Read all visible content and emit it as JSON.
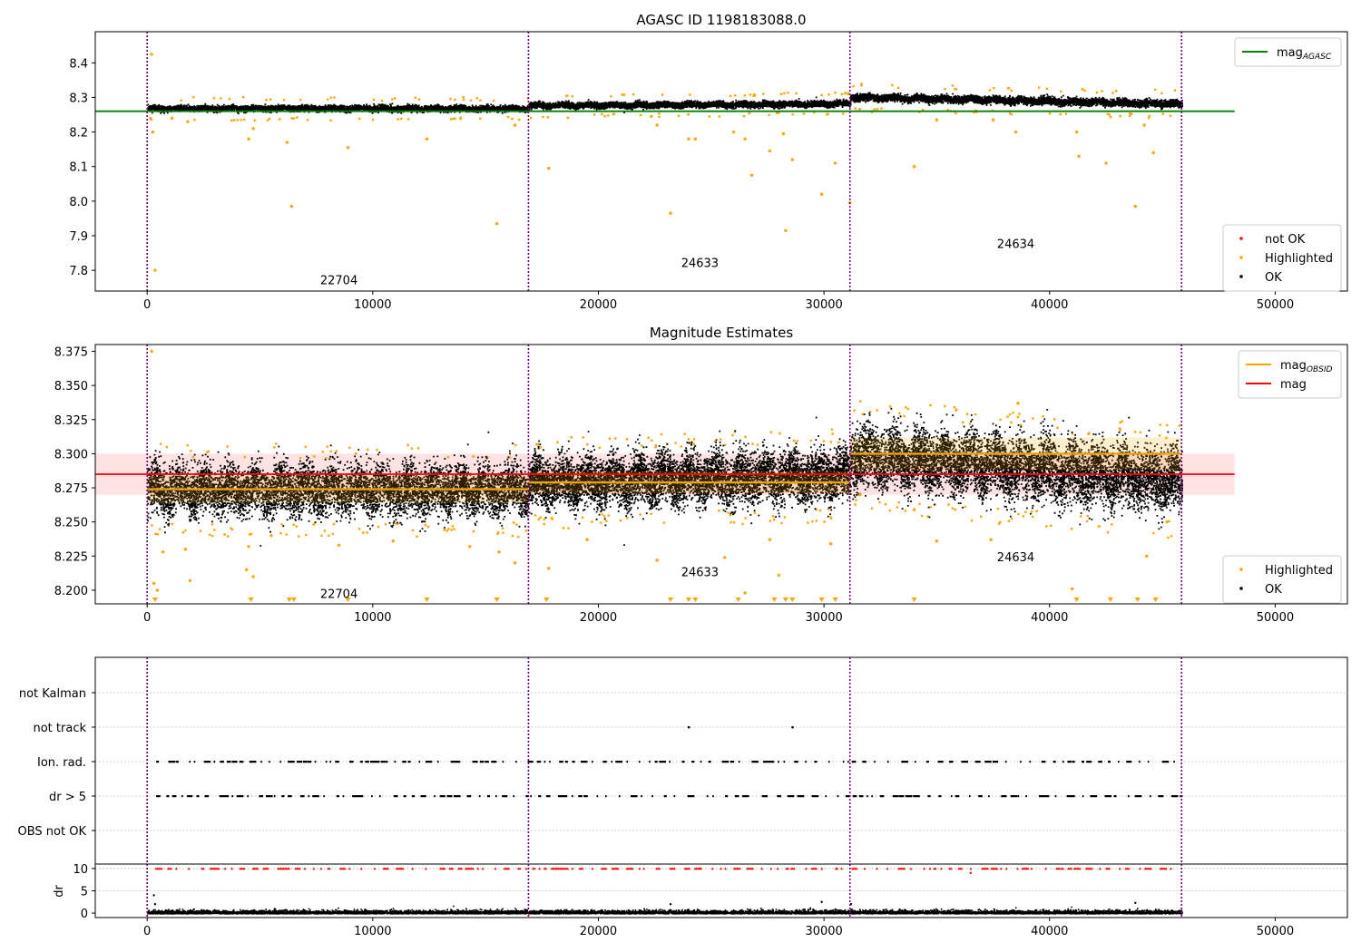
{
  "colors": {
    "ok": "#000000",
    "highlighted": "#ffa500",
    "not_ok": "#ff0000",
    "obsid_line": "#e8a317",
    "vline": "#800080",
    "agasc_line": "#008000",
    "mag_line": "#ff0000",
    "band": "#ffc0c0",
    "grid": "#b0b0b0"
  },
  "chart_data": [
    {
      "type": "scatter",
      "title": "AGASC ID 1198183088.0",
      "xlabel": "",
      "ylabel": "",
      "xlim": [
        -2300,
        53200
      ],
      "ylim": [
        7.74,
        8.49
      ],
      "xticks": [
        0,
        10000,
        20000,
        30000,
        40000,
        50000
      ],
      "xtick_labels": [
        "0",
        "10000",
        "20000",
        "30000",
        "40000",
        "50000"
      ],
      "yticks": [
        7.8,
        7.9,
        8.0,
        8.1,
        8.2,
        8.3,
        8.4
      ],
      "ytick_labels": [
        "7.8",
        "7.9",
        "8.0",
        "8.1",
        "8.2",
        "8.3",
        "8.4"
      ],
      "observation_boundaries": [
        0,
        16900,
        31150,
        45850
      ],
      "observations": [
        {
          "obsid": "22704",
          "label_x": 8500,
          "label_y": 7.77,
          "start": 0,
          "end": 16900,
          "level": 8.27,
          "noise": 0.009,
          "trend": 0.0
        },
        {
          "obsid": "24633",
          "label_x": 24500,
          "label_y": 7.82,
          "start": 16900,
          "end": 31150,
          "level": 8.278,
          "noise": 0.009,
          "trend": 0.006
        },
        {
          "obsid": "24634",
          "label_x": 38500,
          "label_y": 7.875,
          "start": 31150,
          "end": 45850,
          "level": 8.303,
          "noise": 0.011,
          "trend": -0.02
        }
      ],
      "reference_lines": [
        {
          "name": "mag_AGASC",
          "y": 8.26,
          "x_range": [
            -2300,
            48200
          ]
        }
      ],
      "highlighted_outliers": [
        {
          "x": 200,
          "y": 8.425
        },
        {
          "x": 250,
          "y": 8.2
        },
        {
          "x": 350,
          "y": 7.8
        },
        {
          "x": 1100,
          "y": 8.24
        },
        {
          "x": 1800,
          "y": 8.23
        },
        {
          "x": 4500,
          "y": 8.18
        },
        {
          "x": 4700,
          "y": 8.21
        },
        {
          "x": 6200,
          "y": 8.17
        },
        {
          "x": 6400,
          "y": 7.985
        },
        {
          "x": 8900,
          "y": 8.155
        },
        {
          "x": 12400,
          "y": 8.18
        },
        {
          "x": 15500,
          "y": 7.935
        },
        {
          "x": 16300,
          "y": 8.22
        },
        {
          "x": 17800,
          "y": 8.095
        },
        {
          "x": 22600,
          "y": 8.22
        },
        {
          "x": 23200,
          "y": 7.965
        },
        {
          "x": 24000,
          "y": 8.18
        },
        {
          "x": 24300,
          "y": 8.18
        },
        {
          "x": 26000,
          "y": 8.2
        },
        {
          "x": 26500,
          "y": 8.18
        },
        {
          "x": 26800,
          "y": 8.075
        },
        {
          "x": 27600,
          "y": 8.145
        },
        {
          "x": 28200,
          "y": 8.195
        },
        {
          "x": 28300,
          "y": 7.915
        },
        {
          "x": 28600,
          "y": 8.12
        },
        {
          "x": 29900,
          "y": 8.02
        },
        {
          "x": 30500,
          "y": 8.11
        },
        {
          "x": 31150,
          "y": 7.995
        },
        {
          "x": 34000,
          "y": 8.1
        },
        {
          "x": 35000,
          "y": 8.235
        },
        {
          "x": 37500,
          "y": 8.235
        },
        {
          "x": 38500,
          "y": 8.2
        },
        {
          "x": 41200,
          "y": 8.2
        },
        {
          "x": 41300,
          "y": 8.13
        },
        {
          "x": 42500,
          "y": 8.11
        },
        {
          "x": 43800,
          "y": 7.985
        },
        {
          "x": 44200,
          "y": 8.22
        },
        {
          "x": 44600,
          "y": 8.14
        }
      ],
      "legends": [
        {
          "placement": "upper-right",
          "entries": [
            {
              "label": "mag",
              "sub": "AGASC",
              "kind": "line",
              "color": "#008000"
            }
          ]
        },
        {
          "placement": "lower-right",
          "entries": [
            {
              "label": "not OK",
              "kind": "marker",
              "color": "#ff0000"
            },
            {
              "label": "Highlighted",
              "kind": "marker",
              "color": "#ffa500"
            },
            {
              "label": "OK",
              "kind": "marker",
              "color": "#000000"
            }
          ]
        }
      ]
    },
    {
      "type": "scatter",
      "title": "Magnitude Estimates",
      "xlabel": "",
      "ylabel": "",
      "xlim": [
        -2300,
        53200
      ],
      "ylim": [
        8.19,
        8.38
      ],
      "xticks": [
        0,
        10000,
        20000,
        30000,
        40000,
        50000
      ],
      "xtick_labels": [
        "0",
        "10000",
        "20000",
        "30000",
        "40000",
        "50000"
      ],
      "yticks": [
        8.2,
        8.225,
        8.25,
        8.275,
        8.3,
        8.325,
        8.35,
        8.375
      ],
      "ytick_labels": [
        "8.200",
        "8.225",
        "8.250",
        "8.275",
        "8.300",
        "8.325",
        "8.350",
        "8.375"
      ],
      "observation_boundaries": [
        0,
        16900,
        31150,
        45850
      ],
      "observations": [
        {
          "obsid": "22704",
          "label_x": 8500,
          "label_y": 8.197,
          "start": 0,
          "end": 16900,
          "mag_obsid": 8.274,
          "band_half": 0.01,
          "noise": 0.009,
          "trend": 0.0
        },
        {
          "obsid": "24633",
          "label_x": 24500,
          "label_y": 8.213,
          "start": 16900,
          "end": 31150,
          "mag_obsid": 8.279,
          "band_half": 0.008,
          "noise": 0.009,
          "trend": 0.006
        },
        {
          "obsid": "24634",
          "label_x": 38500,
          "label_y": 8.224,
          "start": 31150,
          "end": 45850,
          "mag_obsid": 8.3,
          "band_half": 0.012,
          "noise": 0.011,
          "trend": -0.02
        }
      ],
      "reference_lines": [
        {
          "name": "mag",
          "y": 8.285,
          "band": [
            8.27,
            8.3
          ],
          "x_range": [
            -2300,
            48200
          ]
        }
      ],
      "highlighted_outliers": [
        {
          "x": 200,
          "y": 8.375
        },
        {
          "x": 300,
          "y": 8.205
        },
        {
          "x": 450,
          "y": 8.2
        },
        {
          "x": 700,
          "y": 8.228
        },
        {
          "x": 1700,
          "y": 8.23
        },
        {
          "x": 1900,
          "y": 8.207
        },
        {
          "x": 4400,
          "y": 8.215
        },
        {
          "x": 4500,
          "y": 8.232
        },
        {
          "x": 4700,
          "y": 8.21
        },
        {
          "x": 5500,
          "y": 8.24
        },
        {
          "x": 8500,
          "y": 8.233
        },
        {
          "x": 10900,
          "y": 8.236
        },
        {
          "x": 14300,
          "y": 8.232
        },
        {
          "x": 15600,
          "y": 8.228
        },
        {
          "x": 16300,
          "y": 8.22
        },
        {
          "x": 17800,
          "y": 8.216
        },
        {
          "x": 19500,
          "y": 8.237
        },
        {
          "x": 22600,
          "y": 8.222
        },
        {
          "x": 25600,
          "y": 8.224
        },
        {
          "x": 26500,
          "y": 8.198
        },
        {
          "x": 27600,
          "y": 8.237
        },
        {
          "x": 28000,
          "y": 8.211
        },
        {
          "x": 30300,
          "y": 8.234
        },
        {
          "x": 31600,
          "y": 8.27
        },
        {
          "x": 34000,
          "y": 8.259
        },
        {
          "x": 35000,
          "y": 8.236
        },
        {
          "x": 37400,
          "y": 8.237
        },
        {
          "x": 38600,
          "y": 8.337
        },
        {
          "x": 41000,
          "y": 8.201
        },
        {
          "x": 44300,
          "y": 8.225
        },
        {
          "x": 45200,
          "y": 8.25
        }
      ],
      "clipped_low_markers": [
        350,
        4600,
        6300,
        6500,
        8900,
        12400,
        15500,
        17700,
        23200,
        24000,
        24300,
        26200,
        27800,
        28300,
        28600,
        29900,
        30500,
        34000,
        41200,
        42700,
        43900,
        44700
      ],
      "legends": [
        {
          "placement": "upper-right",
          "entries": [
            {
              "label": "mag",
              "sub": "OBSID",
              "kind": "line",
              "color": "#ffa500"
            },
            {
              "label": "mag",
              "kind": "line",
              "color": "#ff0000"
            }
          ]
        },
        {
          "placement": "lower-right",
          "entries": [
            {
              "label": "Highlighted",
              "kind": "marker",
              "color": "#ffa500"
            },
            {
              "label": "OK",
              "kind": "marker",
              "color": "#000000"
            }
          ]
        }
      ]
    },
    {
      "type": "scatter",
      "title": "",
      "xlabel": "",
      "ylabel": "",
      "categories": [
        "not Kalman",
        "not track",
        "Ion. rad.",
        "dr > 5",
        "OBS not OK"
      ],
      "xlim": [
        -2300,
        53200
      ],
      "observation_boundaries": [
        0,
        16900,
        31150,
        45850
      ],
      "flag_rows": [
        {
          "name": "not Kalman",
          "points": []
        },
        {
          "name": "not track",
          "points": [
            24000,
            28600
          ]
        },
        {
          "name": "Ion. rad.",
          "density": "sparse",
          "start": 400,
          "end": 45800
        },
        {
          "name": "dr > 5",
          "density": "sparse",
          "start": 400,
          "end": 45800
        },
        {
          "name": "OBS not OK",
          "points": []
        }
      ]
    },
    {
      "type": "scatter",
      "title": "",
      "xlabel": "",
      "ylabel": "dr",
      "xlim": [
        -2300,
        53200
      ],
      "ylim": [
        -1,
        11
      ],
      "xticks": [
        0,
        10000,
        20000,
        30000,
        40000,
        50000
      ],
      "xtick_labels": [
        "0",
        "10000",
        "20000",
        "30000",
        "40000",
        "50000"
      ],
      "yticks": [
        0,
        5,
        10
      ],
      "ytick_labels": [
        "0",
        "5",
        "10"
      ],
      "observation_boundaries": [
        0,
        16900,
        31150,
        45850
      ],
      "capped_value": 10,
      "notes_points": [
        {
          "x": 300,
          "y": 4
        },
        {
          "x": 350,
          "y": 2
        },
        {
          "x": 23200,
          "y": 2
        },
        {
          "x": 29900,
          "y": 2.5
        },
        {
          "x": 36500,
          "y": 9
        },
        {
          "x": 43800,
          "y": 2.3
        },
        {
          "x": 31200,
          "y": 2
        }
      ]
    }
  ]
}
